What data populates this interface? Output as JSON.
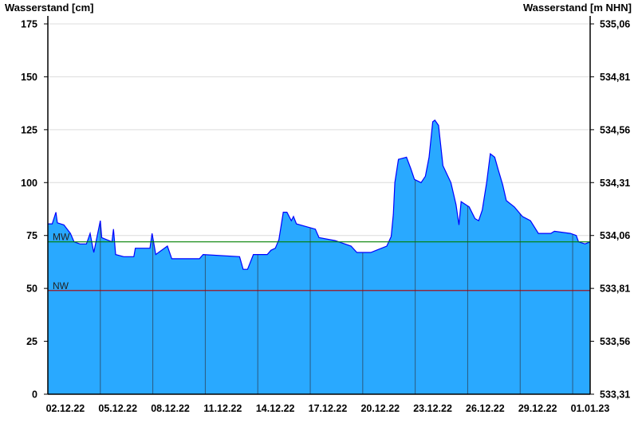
{
  "chart_data": {
    "type": "area",
    "ylabel_left": "Wasserstand [cm]",
    "ylabel_right": "Wasserstand [m NHN]",
    "ylim": [
      0,
      175
    ],
    "yticks_left": [
      "0",
      "25",
      "50",
      "75",
      "100",
      "125",
      "150",
      "175"
    ],
    "yticks_right": [
      "533,31",
      "533,56",
      "533,81",
      "534,06",
      "534,31",
      "534,56",
      "534,81",
      "535,06"
    ],
    "xlim": [
      "2022-12-02 00:00",
      "2023-01-02 00:00"
    ],
    "xticks": [
      {
        "date": "2022-12-02",
        "label": "02.12.22"
      },
      {
        "date": "2022-12-05",
        "label": "05.12.22"
      },
      {
        "date": "2022-12-08",
        "label": "08.12.22"
      },
      {
        "date": "2022-12-11",
        "label": "11.12.22"
      },
      {
        "date": "2022-12-14",
        "label": "14.12.22"
      },
      {
        "date": "2022-12-17",
        "label": "17.12.22"
      },
      {
        "date": "2022-12-20",
        "label": "20.12.22"
      },
      {
        "date": "2022-12-23",
        "label": "23.12.22"
      },
      {
        "date": "2022-12-26",
        "label": "26.12.22"
      },
      {
        "date": "2022-12-29",
        "label": "29.12.22"
      },
      {
        "date": "2023-01-01",
        "label": "01.01.23"
      }
    ],
    "grid": true,
    "reference_lines": [
      {
        "label": "MW",
        "value": 72,
        "color": "#008000"
      },
      {
        "label": "NW",
        "value": 49,
        "color": "#b00000"
      }
    ],
    "fill_color": "#29a9ff",
    "line_color": "#0000ff",
    "series": [
      {
        "x": [
          "2022-12-02 00:00",
          "2022-12-02 06:00",
          "2022-12-02 11:00",
          "2022-12-02 13:00",
          "2022-12-02 22:00",
          "2022-12-03 07:00",
          "2022-12-03 12:00",
          "2022-12-03 20:00",
          "2022-12-04 05:00",
          "2022-12-04 10:00",
          "2022-12-04 15:00",
          "2022-12-05 00:00",
          "2022-12-05 02:00",
          "2022-12-05 16:00",
          "2022-12-05 18:00",
          "2022-12-05 21:00",
          "2022-12-06 08:00",
          "2022-12-06 22:00",
          "2022-12-07 00:00",
          "2022-12-07 20:00",
          "2022-12-07 23:00",
          "2022-12-08 04:00",
          "2022-12-08 20:00",
          "2022-12-09 02:00",
          "2022-12-10 16:00",
          "2022-12-10 21:00",
          "2022-12-12 23:00",
          "2022-12-13 04:00",
          "2022-12-13 10:00",
          "2022-12-13 18:00",
          "2022-12-14 13:00",
          "2022-12-14 18:00",
          "2022-12-15 00:00",
          "2022-12-15 05:00",
          "2022-12-15 11:00",
          "2022-12-15 16:00",
          "2022-12-15 22:00",
          "2022-12-16 01:00",
          "2022-12-16 05:00",
          "2022-12-17 07:00",
          "2022-12-17 12:00",
          "2022-12-18 10:00",
          "2022-12-19 08:00",
          "2022-12-19 16:00",
          "2022-12-20 11:00",
          "2022-12-21 09:00",
          "2022-12-21 15:00",
          "2022-12-21 18:00",
          "2022-12-21 20:00",
          "2022-12-22 01:00",
          "2022-12-22 12:00",
          "2022-12-22 18:00",
          "2022-12-22 23:00",
          "2022-12-23 08:00",
          "2022-12-23 14:00",
          "2022-12-23 19:00",
          "2022-12-24 00:00",
          "2022-12-24 03:00",
          "2022-12-24 08:00",
          "2022-12-24 14:00",
          "2022-12-25 01:00",
          "2022-12-25 08:00",
          "2022-12-25 12:00",
          "2022-12-25 15:00",
          "2022-12-26 02:00",
          "2022-12-26 10:00",
          "2022-12-26 15:00",
          "2022-12-26 20:00",
          "2022-12-27 02:00",
          "2022-12-27 07:00",
          "2022-12-27 13:00",
          "2022-12-27 18:00",
          "2022-12-28 00:00",
          "2022-12-28 05:00",
          "2022-12-28 16:00",
          "2022-12-29 03:00",
          "2022-12-29 14:00",
          "2022-12-30 01:00",
          "2022-12-30 18:00",
          "2022-12-30 23:00",
          "2022-12-31 21:00",
          "2023-01-01 05:00",
          "2023-01-01 08:00",
          "2023-01-01 17:00",
          "2023-01-02 00:00"
        ],
        "y": [
          80.5,
          80.5,
          86,
          81,
          80,
          76,
          72,
          71,
          71,
          76,
          67,
          82,
          74,
          72,
          78,
          66,
          65,
          65,
          69,
          69,
          76,
          66,
          70,
          64,
          64,
          66,
          65,
          59,
          59,
          66,
          66,
          68,
          69,
          73,
          86,
          86,
          82,
          84,
          80.5,
          78,
          74,
          72.6,
          70,
          67,
          67,
          70,
          74.5,
          85,
          100,
          111,
          112,
          106.5,
          101.5,
          100,
          103,
          112,
          128.7,
          129.5,
          127,
          108,
          100,
          89.6,
          80,
          91,
          88.5,
          83,
          82,
          87,
          100,
          113.6,
          112,
          106,
          99,
          91.5,
          88.5,
          84,
          82,
          76,
          76,
          77,
          76,
          75,
          72,
          71,
          72
        ]
      }
    ]
  }
}
